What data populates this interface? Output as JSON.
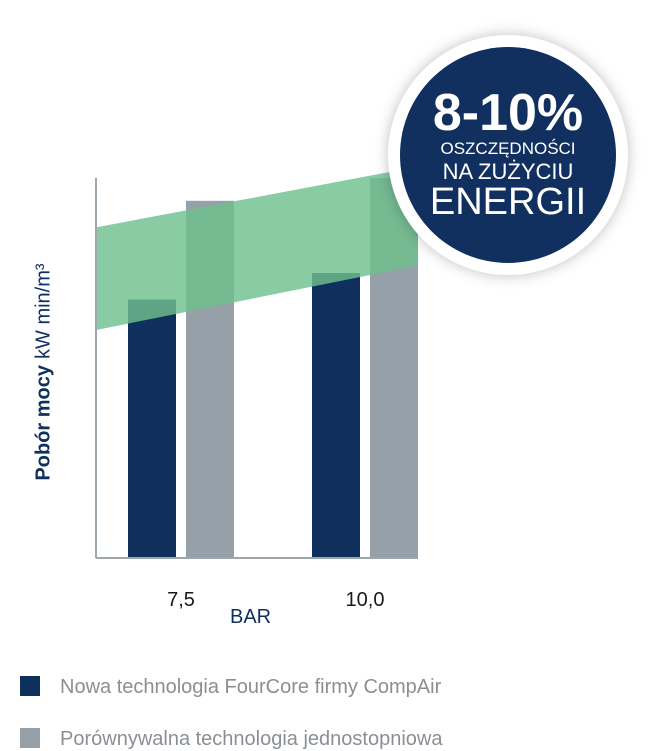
{
  "chart_data": {
    "type": "bar",
    "categories": [
      "7,5",
      "10,0"
    ],
    "xlabel": "BAR",
    "ylabel": "Pobór mocy",
    "yunit": "kW min/m³",
    "ylim": [
      0,
      100
    ],
    "yticks_shown": false,
    "grid": false,
    "series": [
      {
        "name": "Nowa technologia FourCore firmy CompAir",
        "color": "#0f2f5c",
        "values": [
          68,
          75
        ]
      },
      {
        "name": "Porównywalna technologia jednostopniowa",
        "color": "#95a0a8",
        "values": [
          94,
          100
        ]
      }
    ],
    "savings_band": {
      "color": "#6fbf8e",
      "lower": [
        60,
        77
      ],
      "upper": [
        87,
        103
      ]
    },
    "legend_position": "bottom-left"
  },
  "badge": {
    "big": "8-10%",
    "line2": "OSZCZĘDNOŚCI",
    "line3": "NA ZUŻYCIU",
    "line4": "ENERGII"
  }
}
